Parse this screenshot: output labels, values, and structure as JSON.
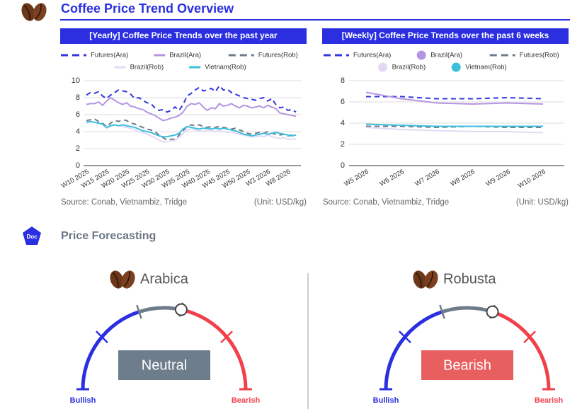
{
  "header": {
    "title": "Coffee Price Trend Overview"
  },
  "chart_data": [
    {
      "type": "line",
      "title": "[Yearly] Coffee Price Trends over the past year",
      "source": "Source: Conab, Vietnambiz, Tridge",
      "unit": "(Unit: USD/kg)",
      "legend_marker": "line",
      "grid": true,
      "categories": [
        "W10 2025",
        null,
        null,
        null,
        null,
        "W15 2025",
        null,
        null,
        null,
        null,
        "W20 2025",
        null,
        null,
        null,
        null,
        "W25 2025",
        null,
        null,
        null,
        null,
        "W30 2025",
        null,
        null,
        null,
        null,
        "W35 2025",
        null,
        null,
        null,
        null,
        "W40 2025",
        null,
        null,
        null,
        null,
        "W45 2025",
        null,
        null,
        null,
        null,
        "W50 2025",
        null,
        null,
        null,
        null,
        "W3 2026",
        null,
        null,
        null,
        null,
        "W8 2026",
        null,
        null
      ],
      "ylim": [
        0,
        10
      ],
      "yticks": [
        0,
        2,
        4,
        6,
        8,
        10
      ],
      "series": [
        {
          "name": "Futures(Ara)",
          "color": "#3236e0",
          "dashed": true,
          "values": [
            8.3,
            8.6,
            8.5,
            8.7,
            8.2,
            7.9,
            8.3,
            8.6,
            8.9,
            8.8,
            8.7,
            8.4,
            7.9,
            8.0,
            7.7,
            7.4,
            7.3,
            6.8,
            6.5,
            6.6,
            6.3,
            6.5,
            6.9,
            6.5,
            7.2,
            8.2,
            8.5,
            8.9,
            9.2,
            8.8,
            8.9,
            9.1,
            8.7,
            9.4,
            8.9,
            9.0,
            8.6,
            8.4,
            8.2,
            8.0,
            7.9,
            7.8,
            7.7,
            7.9,
            8.0,
            7.6,
            7.9,
            7.2,
            6.8,
            6.9,
            6.5,
            6.6,
            6.3
          ]
        },
        {
          "name": "Brazil(Ara)",
          "color": "#b595e3",
          "dashed": false,
          "values": [
            7.2,
            7.3,
            7.3,
            7.5,
            7.1,
            7.6,
            8.0,
            7.7,
            7.4,
            7.2,
            7.4,
            7.0,
            6.9,
            6.7,
            6.6,
            6.3,
            6.1,
            5.9,
            5.6,
            5.3,
            5.4,
            5.6,
            5.7,
            5.9,
            6.3,
            7.0,
            7.3,
            7.2,
            7.4,
            6.9,
            6.5,
            6.8,
            6.7,
            7.3,
            7.0,
            7.1,
            7.3,
            7.0,
            6.8,
            7.1,
            7.0,
            6.8,
            6.9,
            7.0,
            6.8,
            7.1,
            6.9,
            6.7,
            6.2,
            6.1,
            6.0,
            5.9,
            5.8
          ]
        },
        {
          "name": "Futures(Rob)",
          "color": "#6e7c8a",
          "dashed": true,
          "values": [
            5.3,
            5.4,
            5.5,
            5.2,
            5.0,
            4.6,
            5.0,
            5.3,
            5.2,
            5.4,
            5.3,
            5.0,
            4.9,
            4.7,
            4.5,
            4.3,
            4.2,
            4.0,
            3.6,
            3.3,
            3.0,
            3.1,
            3.1,
            3.6,
            4.1,
            4.6,
            4.8,
            4.7,
            4.8,
            4.6,
            4.5,
            4.6,
            4.5,
            4.6,
            4.5,
            4.4,
            4.3,
            4.4,
            4.2,
            4.0,
            3.8,
            3.7,
            3.8,
            3.9,
            3.8,
            4.0,
            3.8,
            3.7,
            3.6,
            3.7,
            3.5,
            3.6,
            3.6
          ]
        },
        {
          "name": "Brazil(Rob)",
          "color": "#e4d9f4",
          "dashed": false,
          "values": [
            5.0,
            5.2,
            5.1,
            5.0,
            4.8,
            4.4,
            4.6,
            4.8,
            4.7,
            4.6,
            4.5,
            4.4,
            4.2,
            4.0,
            3.9,
            3.7,
            3.5,
            3.3,
            3.0,
            2.8,
            2.8,
            2.9,
            3.0,
            3.3,
            3.8,
            4.2,
            4.3,
            4.2,
            4.1,
            4.0,
            4.2,
            4.1,
            4.0,
            4.1,
            4.0,
            3.9,
            4.0,
            3.8,
            3.7,
            3.6,
            3.5,
            3.4,
            3.4,
            3.5,
            3.4,
            3.6,
            3.4,
            3.3,
            3.2,
            3.3,
            3.1,
            3.1,
            3.1
          ]
        },
        {
          "name": "Vietnam(Rob)",
          "color": "#3bbfdc",
          "dashed": false,
          "values": [
            5.1,
            5.2,
            5.1,
            5.0,
            4.9,
            4.5,
            4.7,
            4.8,
            4.7,
            4.8,
            4.7,
            4.6,
            4.5,
            4.3,
            4.1,
            4.0,
            3.9,
            3.7,
            3.5,
            3.4,
            3.4,
            3.5,
            3.6,
            3.8,
            4.3,
            4.6,
            4.5,
            4.4,
            4.3,
            4.4,
            4.4,
            4.3,
            4.4,
            4.3,
            4.4,
            4.3,
            4.2,
            4.1,
            3.9,
            3.7,
            3.6,
            3.5,
            3.6,
            3.7,
            3.8,
            3.7,
            3.8,
            3.9,
            3.8,
            3.7,
            3.6,
            3.5,
            3.6
          ]
        }
      ]
    },
    {
      "type": "line",
      "title": "[Weekly] Coffee Price Trends over the past 6 weeks",
      "source": "Source: Conab, Vietnambiz, Tridge",
      "unit": "(Unit: USD/kg)",
      "legend_marker": "circle",
      "grid": true,
      "categories": [
        "W5 2026",
        "W6 2026",
        "W7 2026",
        "W8 2026",
        "W9 2026",
        "W10 2026"
      ],
      "ylim": [
        0,
        8
      ],
      "yticks": [
        0,
        2,
        4,
        6,
        8
      ],
      "series": [
        {
          "name": "Futures(Ara)",
          "color": "#3236e0",
          "dashed": true,
          "values": [
            6.5,
            6.5,
            6.3,
            6.3,
            6.4,
            6.3
          ]
        },
        {
          "name": "Brazil(Ara)",
          "color": "#b595e3",
          "dashed": false,
          "values": [
            6.9,
            6.3,
            5.9,
            5.8,
            5.9,
            5.8
          ]
        },
        {
          "name": "Futures(Rob)",
          "color": "#6e7c8a",
          "dashed": true,
          "values": [
            3.7,
            3.7,
            3.6,
            3.7,
            3.6,
            3.6
          ]
        },
        {
          "name": "Brazil(Rob)",
          "color": "#e4d9f4",
          "dashed": false,
          "values": [
            3.6,
            3.4,
            3.3,
            3.2,
            3.2,
            3.1
          ]
        },
        {
          "name": "Vietnam(Rob)",
          "color": "#3bbfdc",
          "dashed": false,
          "values": [
            3.9,
            3.8,
            3.7,
            3.7,
            3.7,
            3.7
          ]
        }
      ]
    }
  ],
  "forecast": {
    "title": "Price Forecasting",
    "icon_label": "Doc",
    "items": [
      {
        "name": "Arabica",
        "status": "Neutral",
        "color": "#6e7d8c",
        "left_label": "Bullish",
        "right_label": "Bearish"
      },
      {
        "name": "Robusta",
        "status": "Bearish",
        "color": "#e85f5f",
        "left_label": "Bullish",
        "right_label": "Bearish"
      }
    ]
  }
}
